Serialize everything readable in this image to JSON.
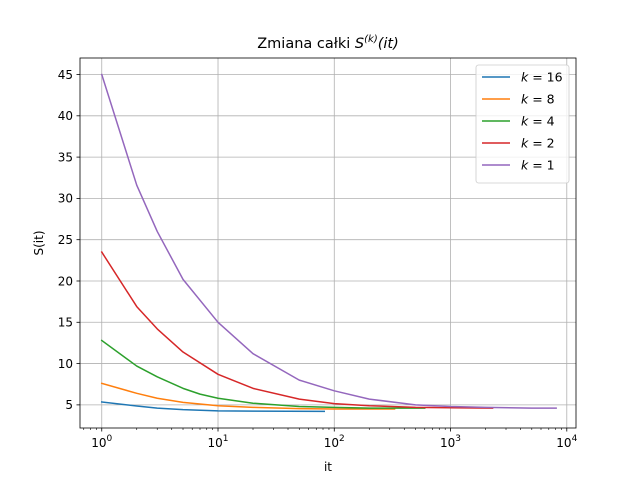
{
  "chart_data": {
    "type": "line",
    "title_text": "Zmiana całki ",
    "title_math": {
      "base": "S",
      "superscript": "(k)",
      "argument": "(it)"
    },
    "xlabel": "it",
    "ylabel": "S(it)",
    "x_scale": "log",
    "xlim": [
      0.65,
      12000
    ],
    "ylim": [
      2.2,
      47.0
    ],
    "x_ticks": [
      {
        "value": 1,
        "base": "10",
        "exp": "0"
      },
      {
        "value": 10,
        "base": "10",
        "exp": "1"
      },
      {
        "value": 100,
        "base": "10",
        "exp": "2"
      },
      {
        "value": 1000,
        "base": "10",
        "exp": "3"
      },
      {
        "value": 10000,
        "base": "10",
        "exp": "4"
      }
    ],
    "y_ticks": [
      5,
      10,
      15,
      20,
      25,
      30,
      35,
      40,
      45
    ],
    "grid": true,
    "legend_position": "top-right",
    "legend_var": "k",
    "series": [
      {
        "name": "16",
        "color": "#1f77b4",
        "x": [
          1,
          2,
          3,
          5,
          10,
          20,
          40,
          82
        ],
        "y": [
          5.35,
          4.87,
          4.6,
          4.42,
          4.28,
          4.25,
          4.23,
          4.22
        ]
      },
      {
        "name": "8",
        "color": "#ff7f0e",
        "x": [
          1,
          2,
          3,
          5,
          10,
          20,
          50,
          100,
          200,
          330
        ],
        "y": [
          7.6,
          6.4,
          5.8,
          5.3,
          4.9,
          4.7,
          4.55,
          4.5,
          4.5,
          4.5
        ]
      },
      {
        "name": "4",
        "color": "#2ca02c",
        "x": [
          1,
          2,
          3,
          5,
          7,
          10,
          20,
          50,
          100,
          200,
          500,
          600
        ],
        "y": [
          12.8,
          9.7,
          8.4,
          7.0,
          6.3,
          5.8,
          5.2,
          4.8,
          4.7,
          4.6,
          4.6,
          4.6
        ]
      },
      {
        "name": "2",
        "color": "#d62728",
        "x": [
          1,
          2,
          3,
          5,
          10,
          20,
          50,
          100,
          200,
          500,
          1000,
          2300
        ],
        "y": [
          23.5,
          16.9,
          14.2,
          11.4,
          8.7,
          7.0,
          5.7,
          5.15,
          4.9,
          4.7,
          4.65,
          4.6
        ]
      },
      {
        "name": "1",
        "color": "#9467bd",
        "x": [
          1,
          2,
          3,
          5,
          10,
          20,
          50,
          100,
          200,
          500,
          1000,
          2000,
          5000,
          8100
        ],
        "y": [
          45.0,
          31.6,
          26.0,
          20.2,
          15.0,
          11.2,
          8.0,
          6.7,
          5.7,
          5.0,
          4.8,
          4.7,
          4.6,
          4.6
        ]
      }
    ]
  }
}
